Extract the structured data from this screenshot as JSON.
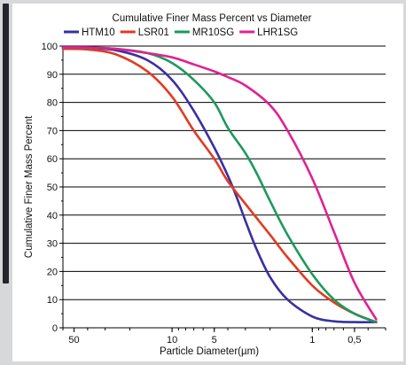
{
  "chart_data": {
    "type": "line",
    "title": "Cumulative Finer Mass Percent vs Diameter",
    "xlabel": "Particle Diameter(µm)",
    "ylabel": "Cumulative Finer Mass Percent",
    "x_scale": "log",
    "x_reversed": true,
    "xlim": [
      60,
      0.3
    ],
    "ylim": [
      0,
      100
    ],
    "x_ticks": [
      {
        "value": 50,
        "label": "50"
      },
      {
        "value": 10,
        "label": "10"
      },
      {
        "value": 5,
        "label": "5"
      },
      {
        "value": 1,
        "label": "1"
      },
      {
        "value": 0.5,
        "label": "0,5"
      }
    ],
    "y_ticks": [
      {
        "value": 0,
        "label": "0"
      },
      {
        "value": 10,
        "label": "10"
      },
      {
        "value": 20,
        "label": "20"
      },
      {
        "value": 30,
        "label": "30"
      },
      {
        "value": 40,
        "label": "40"
      },
      {
        "value": 50,
        "label": "50"
      },
      {
        "value": 60,
        "label": "60"
      },
      {
        "value": 70,
        "label": "70"
      },
      {
        "value": 80,
        "label": "80"
      },
      {
        "value": 90,
        "label": "90"
      },
      {
        "value": 100,
        "label": "100"
      }
    ],
    "grid": "horizontal",
    "legend_position": "top",
    "series": [
      {
        "name": "HTM10",
        "color": "#3a2fa0",
        "x": [
          60,
          40,
          25,
          15,
          10,
          7,
          5,
          4,
          3.5,
          3,
          2.5,
          2,
          1.5,
          1,
          0.7,
          0.5,
          0.35
        ],
        "y": [
          99.5,
          99.3,
          98.5,
          95,
          88,
          77,
          64,
          54,
          47,
          38,
          28,
          18,
          10,
          4,
          2.3,
          2,
          2
        ]
      },
      {
        "name": "LSR01",
        "color": "#e23a23",
        "x": [
          60,
          40,
          25,
          15,
          10,
          7,
          5,
          4,
          3,
          2,
          1.5,
          1,
          0.7,
          0.5,
          0.35
        ],
        "y": [
          99,
          98.8,
          97,
          91,
          82,
          70,
          60,
          52,
          44,
          33,
          25,
          15,
          9,
          5,
          2
        ]
      },
      {
        "name": "MR10SG",
        "color": "#1c9a5a",
        "x": [
          60,
          40,
          25,
          15,
          10,
          7,
          5,
          4,
          3,
          2.5,
          2,
          1.5,
          1,
          0.7,
          0.5,
          0.35
        ],
        "y": [
          99.5,
          99.4,
          99,
          97.5,
          94,
          88,
          80,
          71,
          62,
          55,
          45,
          33,
          19,
          10,
          5,
          2
        ]
      },
      {
        "name": "LHR1SG",
        "color": "#df2291",
        "x": [
          60,
          40,
          25,
          15,
          10,
          7,
          5,
          4,
          3,
          2,
          1.5,
          1,
          0.7,
          0.5,
          0.35
        ],
        "y": [
          99.5,
          99.5,
          99,
          97.5,
          96,
          93.5,
          91,
          89,
          86,
          79,
          70,
          53,
          34,
          16,
          3
        ]
      }
    ]
  }
}
